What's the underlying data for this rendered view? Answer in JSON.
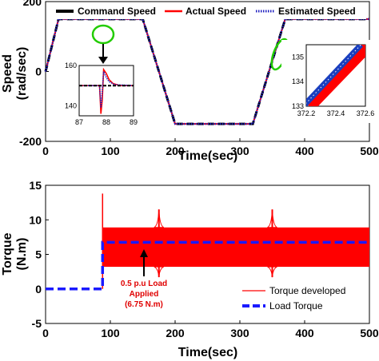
{
  "chart_data": [
    {
      "type": "line",
      "title": "",
      "xlabel": "Time(sec)",
      "ylabel": "Speed\n(rad/sec)",
      "xlim": [
        0,
        500
      ],
      "ylim": [
        -200,
        200
      ],
      "xticks": [
        "0",
        "100",
        "200",
        "300",
        "400",
        "500"
      ],
      "yticks": [
        "200",
        "0",
        "-200"
      ],
      "legend_position": "top",
      "series": [
        {
          "name": "Command Speed",
          "color": "#000000",
          "style": "dashed",
          "x": [
            0,
            20,
            150,
            200,
            320,
            370,
            500
          ],
          "y": [
            0,
            150,
            150,
            -150,
            -150,
            150,
            150
          ]
        },
        {
          "name": "Actual Speed",
          "color": "#ff0000",
          "style": "solid",
          "x": [
            0,
            20,
            150,
            200,
            320,
            370,
            500
          ],
          "y": [
            0,
            150,
            150,
            -150,
            -150,
            150,
            150
          ]
        },
        {
          "name": "Estimated Speed",
          "color": "#2020c0",
          "style": "dotted",
          "x": [
            0,
            20,
            150,
            200,
            320,
            370,
            500
          ],
          "y": [
            0,
            150,
            150,
            -150,
            -150,
            150,
            150
          ]
        }
      ],
      "insets": [
        {
          "xlim": [
            87,
            89
          ],
          "ylim": [
            135,
            160
          ],
          "xticks": [
            "87",
            "88",
            "89"
          ],
          "yticks": [
            "160",
            "140"
          ],
          "command": {
            "x": [
              87,
              89
            ],
            "y": [
              150,
              150
            ]
          },
          "actual": {
            "x": [
              87,
              87.5,
              87.75,
              87.8,
              87.85,
              87.9,
              88.0,
              88.1,
              88.25,
              88.5,
              89
            ],
            "y": [
              150,
              150,
              150,
              136,
              143,
              158,
              156,
              153,
              151,
              150,
              150
            ]
          },
          "estimated": {
            "x": [
              87,
              87.5,
              87.75,
              87.8,
              87.85,
              87.9,
              88.0,
              88.1,
              88.3,
              89
            ],
            "y": [
              150,
              150,
              150,
              139,
              147,
              157,
              154,
              152,
              150.5,
              150
            ]
          }
        },
        {
          "xlim": [
            372.2,
            372.6
          ],
          "ylim": [
            133,
            135.5
          ],
          "xticks": [
            "372.2",
            "372.4",
            "372.6"
          ],
          "yticks": [
            "135",
            "134",
            "133"
          ],
          "estimated": {
            "x": [
              372.18,
              372.57
            ],
            "y": [
              133,
              135.5
            ]
          },
          "actual": {
            "x": [
              372.22,
              372.62
            ],
            "y": [
              133,
              135.5
            ]
          }
        }
      ]
    },
    {
      "type": "line",
      "title": "",
      "xlabel": "Time(sec)",
      "ylabel": "Torque\n(N.m)",
      "xlim": [
        0,
        500
      ],
      "ylim": [
        -5,
        15
      ],
      "xticks": [
        "0",
        "100",
        "200",
        "300",
        "400",
        "500"
      ],
      "yticks": [
        "15",
        "10",
        "5",
        "0",
        "-5"
      ],
      "legend_position": "bottom-right",
      "series": [
        {
          "name": "Torque developed",
          "color": "#ff0000",
          "style": "solid",
          "band_x": [
            88,
            500
          ],
          "band_low": 3.2,
          "band_high": 8.9,
          "spike": {
            "x": 88,
            "y": 13.8
          },
          "transients": [
            {
              "x": 175,
              "low": 1.7,
              "high": 11.5
            },
            {
              "x": 350,
              "low": 1.7,
              "high": 11.5
            }
          ]
        },
        {
          "name": "Load Torque",
          "color": "#1a1aff",
          "style": "dashed",
          "x": [
            0,
            88,
            88,
            500
          ],
          "y": [
            0,
            0,
            6.75,
            6.75
          ]
        }
      ],
      "annotation": {
        "text": [
          "0.5 p.u Load",
          "Applied",
          "(6.75 N.m)"
        ],
        "x": 175,
        "y": 6.75
      }
    }
  ],
  "colors": {
    "command": "#000000",
    "actual": "#ff0000",
    "estimated": "#2020c0",
    "load": "#1a1aff",
    "highlight": "#22cc00"
  }
}
